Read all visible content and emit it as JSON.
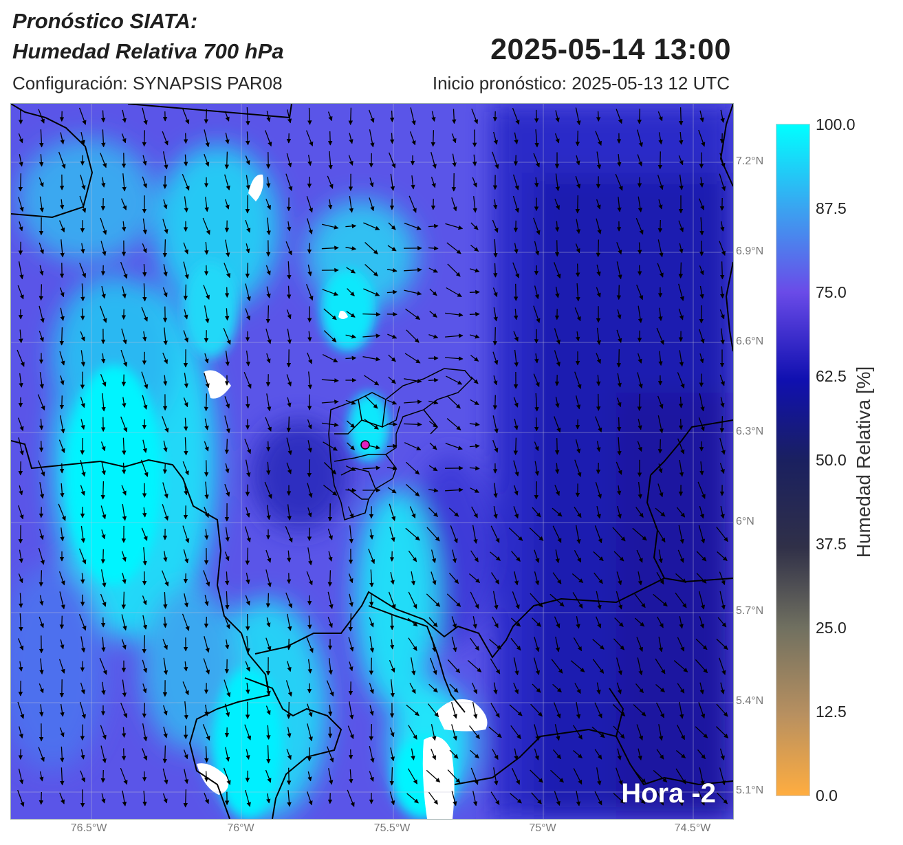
{
  "header": {
    "title_line1": "Pronóstico SIATA:",
    "title_line2": "Humedad Relativa 700 hPa",
    "datetime": "2025-05-14 13:00",
    "config": "Configuración: SYNAPSIS PAR08",
    "init": "Inicio pronóstico: 2025-05-13 12 UTC"
  },
  "map": {
    "lon_ticks": [
      "76.5°W",
      "76°W",
      "75.5°W",
      "75°W",
      "74.5°W"
    ],
    "lat_ticks": [
      "7.2°N",
      "6.9°N",
      "6.6°N",
      "6.3°N",
      "6°N",
      "5.7°N",
      "5.4°N",
      "5.1°N"
    ],
    "hour_label": "Hora -2",
    "marker_color": "#e020c0"
  },
  "colorbar": {
    "title": "Humedad Relativa [%]",
    "labels": [
      "100.0",
      "87.5",
      "75.0",
      "62.5",
      "50.0",
      "37.5",
      "25.0",
      "12.5",
      "0.0"
    ],
    "colors": [
      "#00ffff",
      "#3ca0f0",
      "#6a4be8",
      "#1010b0",
      "#1a2060",
      "#303048",
      "#707060",
      "#b89060",
      "#ffad40"
    ]
  }
}
